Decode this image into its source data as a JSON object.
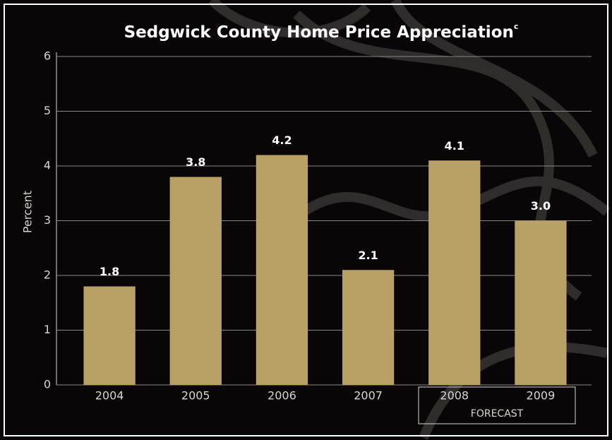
{
  "chart_data": {
    "type": "bar",
    "title": "Sedgwick County Home Price Appreciation",
    "title_superscript": "c",
    "y_label": "Percent",
    "categories": [
      "2004",
      "2005",
      "2006",
      "2007",
      "2008",
      "2009"
    ],
    "values": [
      1.8,
      3.8,
      4.2,
      2.1,
      4.1,
      3.0
    ],
    "value_labels": [
      "1.8",
      "3.8",
      "4.2",
      "2.1",
      "4.1",
      "3.0"
    ],
    "color": "#b9a065",
    "ylim": [
      0,
      6
    ],
    "yticks": [
      0,
      1,
      2,
      3,
      4,
      5,
      6
    ],
    "grid": true,
    "annotation": "FORECAST"
  }
}
